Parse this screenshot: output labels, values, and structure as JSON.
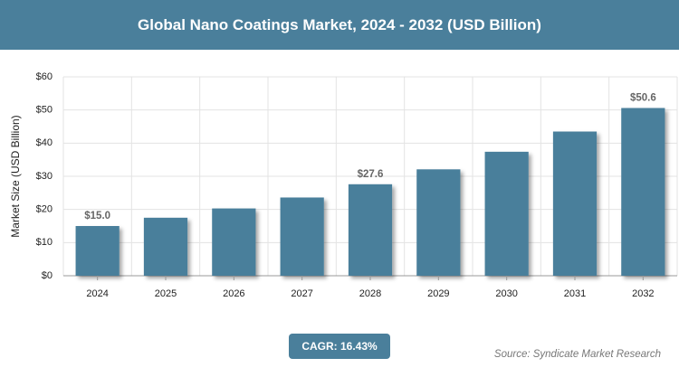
{
  "chart_data": {
    "type": "bar",
    "title": "Global Nano Coatings Market, 2024 - 2032 (USD Billion)",
    "y_label": "Market Size (USD Billion)",
    "categories": [
      "2024",
      "2025",
      "2026",
      "2027",
      "2028",
      "2029",
      "2030",
      "2031",
      "2032"
    ],
    "values": [
      15.0,
      17.5,
      20.3,
      23.6,
      27.6,
      32.1,
      37.4,
      43.5,
      50.6
    ],
    "value_labels": [
      "$15.0",
      null,
      null,
      null,
      "$27.6",
      null,
      null,
      null,
      "$50.6"
    ],
    "color": "#4a7f9b",
    "ylim": [
      0,
      60
    ],
    "yticks": [
      {
        "value": 0,
        "label": "$0"
      },
      {
        "value": 10,
        "label": "$10"
      },
      {
        "value": 20,
        "label": "$20"
      },
      {
        "value": 30,
        "label": "$30"
      },
      {
        "value": 40,
        "label": "$40"
      },
      {
        "value": 50,
        "label": "$50"
      },
      {
        "value": 60,
        "label": "$60"
      }
    ],
    "grid": true,
    "cagr": "CAGR: 16.43%",
    "source": "Source: Syndicate Market Research"
  }
}
